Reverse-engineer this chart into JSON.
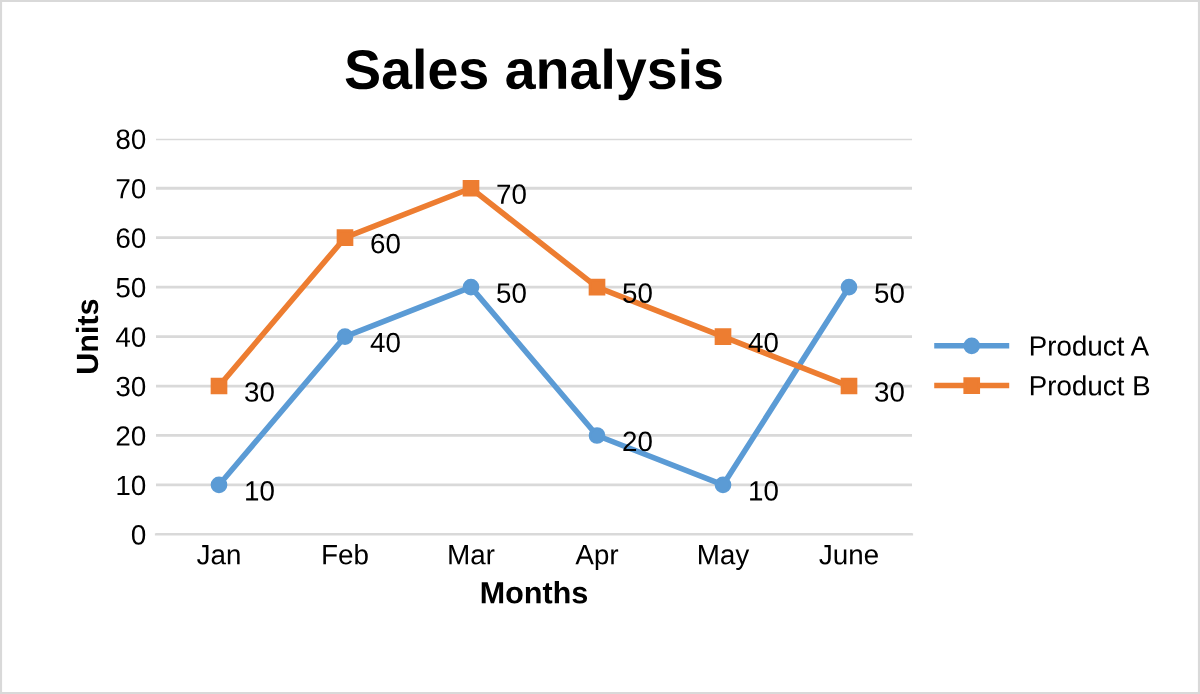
{
  "chart_data": {
    "type": "line",
    "title": "Sales analysis",
    "xlabel": "Months",
    "ylabel": "Units",
    "categories": [
      "Jan",
      "Feb",
      "Mar",
      "Apr",
      "May",
      "June"
    ],
    "series": [
      {
        "name": "Product A",
        "color": "#5b9bd5",
        "marker": "circle",
        "values": [
          10,
          40,
          50,
          20,
          10,
          50
        ]
      },
      {
        "name": "Product B",
        "color": "#ed7d31",
        "marker": "square",
        "values": [
          30,
          60,
          70,
          50,
          40,
          30
        ]
      }
    ],
    "ylim": [
      0,
      80
    ],
    "yticks": [
      0,
      10,
      20,
      30,
      40,
      50,
      60,
      70,
      80
    ],
    "grid": "y",
    "legend": "right",
    "data_labels": true,
    "line_style": "solid"
  }
}
